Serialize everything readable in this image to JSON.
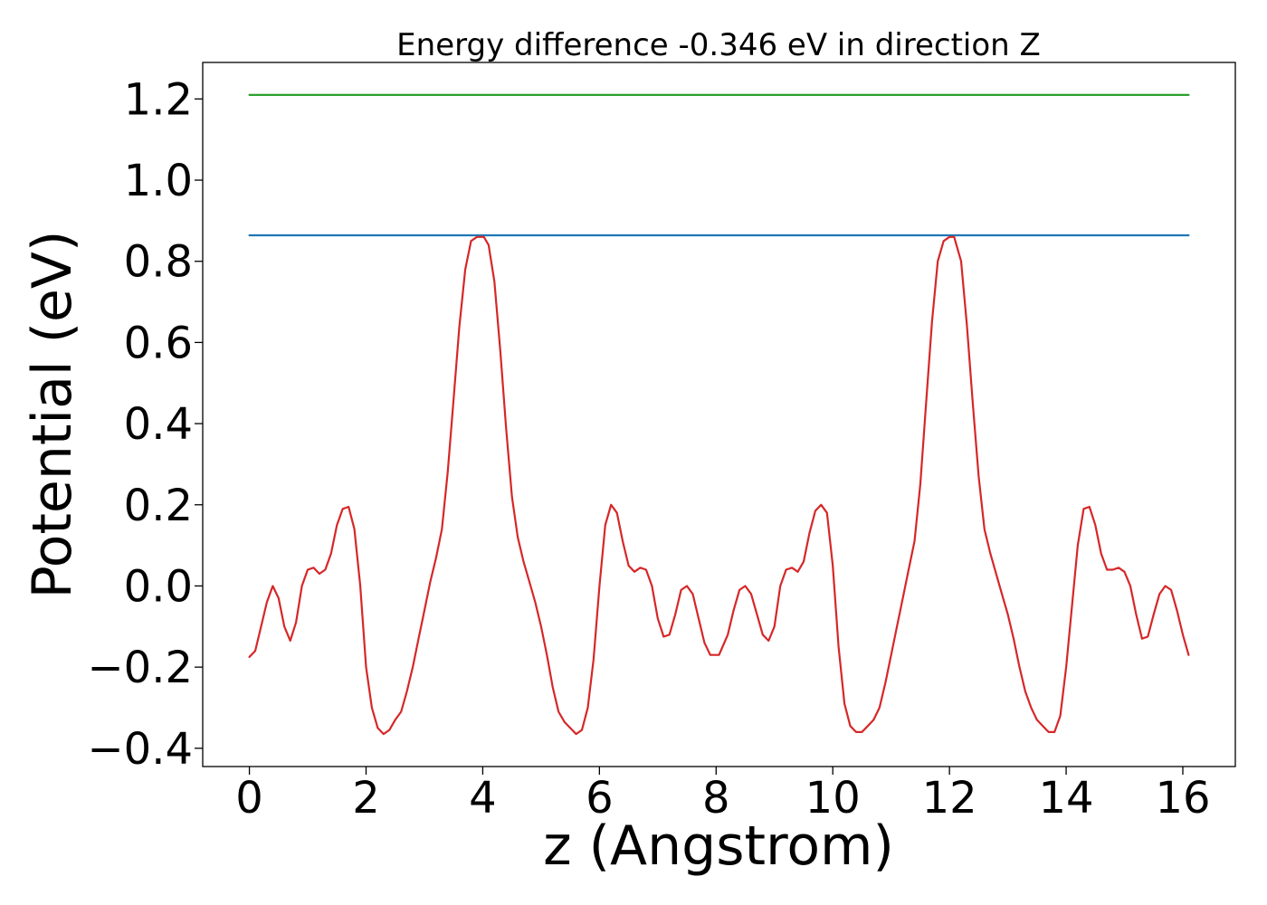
{
  "chart_data": {
    "type": "line",
    "title": "Energy difference -0.346 eV in direction Z",
    "xlabel": "z (Angstrom)",
    "ylabel": "Potential (eV)",
    "xlim": [
      -0.8,
      16.9
    ],
    "ylim": [
      -0.445,
      1.29
    ],
    "xticks": [
      0,
      2,
      4,
      6,
      8,
      10,
      12,
      14,
      16
    ],
    "xtick_labels": [
      "0",
      "2",
      "4",
      "6",
      "8",
      "10",
      "12",
      "14",
      "16"
    ],
    "yticks": [
      -0.4,
      -0.2,
      0.0,
      0.2,
      0.4,
      0.6,
      0.8,
      1.0,
      1.2
    ],
    "ytick_labels": [
      "−0.4",
      "−0.2",
      "0.0",
      "0.2",
      "0.4",
      "0.6",
      "0.8",
      "1.0",
      "1.2"
    ],
    "grid": false,
    "series": [
      {
        "color": "#2ca02c",
        "x": [
          0,
          16.1
        ],
        "y": [
          1.21,
          1.21
        ]
      },
      {
        "color": "#1f77b4",
        "x": [
          0,
          16.1
        ],
        "y": [
          0.864,
          0.864
        ]
      },
      {
        "color": "#d62728",
        "x": [
          0,
          0.1,
          0.2,
          0.3,
          0.4,
          0.5,
          0.6,
          0.7,
          0.8,
          0.9,
          1.0,
          1.1,
          1.2,
          1.3,
          1.4,
          1.5,
          1.6,
          1.7,
          1.8,
          1.9,
          2.0,
          2.1,
          2.2,
          2.3,
          2.4,
          2.5,
          2.6,
          2.7,
          2.8,
          2.9,
          3.0,
          3.1,
          3.2,
          3.3,
          3.4,
          3.5,
          3.6,
          3.7,
          3.8,
          3.9,
          4.02,
          4.1,
          4.2,
          4.3,
          4.4,
          4.5,
          4.6,
          4.7,
          4.8,
          4.9,
          5.0,
          5.1,
          5.2,
          5.3,
          5.4,
          5.5,
          5.6,
          5.7,
          5.8,
          5.9,
          6.0,
          6.1,
          6.2,
          6.3,
          6.4,
          6.5,
          6.6,
          6.7,
          6.8,
          6.9,
          7.0,
          7.1,
          7.2,
          7.3,
          7.4,
          7.5,
          7.6,
          7.7,
          7.8,
          7.9,
          8.05,
          8.2,
          8.3,
          8.4,
          8.5,
          8.6,
          8.7,
          8.8,
          8.9,
          9.0,
          9.1,
          9.2,
          9.3,
          9.4,
          9.5,
          9.6,
          9.7,
          9.8,
          9.9,
          10.0,
          10.1,
          10.2,
          10.3,
          10.4,
          10.5,
          10.6,
          10.7,
          10.8,
          10.9,
          11.0,
          11.1,
          11.2,
          11.3,
          11.4,
          11.5,
          11.6,
          11.7,
          11.8,
          11.9,
          12.0,
          12.08,
          12.2,
          12.3,
          12.4,
          12.5,
          12.6,
          12.7,
          12.8,
          12.9,
          13.0,
          13.1,
          13.2,
          13.3,
          13.4,
          13.5,
          13.6,
          13.7,
          13.8,
          13.9,
          14.0,
          14.1,
          14.2,
          14.3,
          14.4,
          14.5,
          14.6,
          14.7,
          14.8,
          14.9,
          15.0,
          15.1,
          15.2,
          15.3,
          15.4,
          15.5,
          15.6,
          15.7,
          15.8,
          15.9,
          16.0,
          16.1
        ],
        "y": [
          -0.175,
          -0.16,
          -0.1,
          -0.04,
          0.0,
          -0.03,
          -0.1,
          -0.135,
          -0.09,
          0.0,
          0.04,
          0.045,
          0.03,
          0.04,
          0.08,
          0.15,
          0.19,
          0.195,
          0.14,
          0.0,
          -0.2,
          -0.3,
          -0.35,
          -0.365,
          -0.355,
          -0.33,
          -0.31,
          -0.26,
          -0.2,
          -0.13,
          -0.06,
          0.01,
          0.07,
          0.14,
          0.28,
          0.46,
          0.64,
          0.78,
          0.85,
          0.86,
          0.86,
          0.84,
          0.75,
          0.58,
          0.39,
          0.22,
          0.12,
          0.06,
          0.01,
          -0.04,
          -0.1,
          -0.17,
          -0.25,
          -0.31,
          -0.335,
          -0.35,
          -0.365,
          -0.355,
          -0.3,
          -0.18,
          0.0,
          0.15,
          0.2,
          0.18,
          0.11,
          0.05,
          0.035,
          0.045,
          0.04,
          0.0,
          -0.08,
          -0.125,
          -0.12,
          -0.07,
          -0.01,
          0.0,
          -0.02,
          -0.08,
          -0.14,
          -0.17,
          -0.17,
          -0.12,
          -0.06,
          -0.01,
          0.0,
          -0.02,
          -0.07,
          -0.12,
          -0.135,
          -0.1,
          0.0,
          0.04,
          0.045,
          0.035,
          0.06,
          0.13,
          0.185,
          0.2,
          0.18,
          0.05,
          -0.15,
          -0.29,
          -0.345,
          -0.36,
          -0.36,
          -0.345,
          -0.33,
          -0.3,
          -0.24,
          -0.17,
          -0.1,
          -0.03,
          0.04,
          0.11,
          0.25,
          0.45,
          0.65,
          0.8,
          0.85,
          0.86,
          0.86,
          0.8,
          0.64,
          0.45,
          0.27,
          0.14,
          0.08,
          0.03,
          -0.02,
          -0.07,
          -0.13,
          -0.2,
          -0.26,
          -0.3,
          -0.33,
          -0.345,
          -0.36,
          -0.36,
          -0.32,
          -0.2,
          -0.05,
          0.1,
          0.19,
          0.195,
          0.15,
          0.08,
          0.04,
          0.04,
          0.045,
          0.035,
          0.0,
          -0.07,
          -0.13,
          -0.125,
          -0.07,
          -0.02,
          0.0,
          -0.01,
          -0.06,
          -0.12,
          -0.17
        ]
      }
    ]
  }
}
